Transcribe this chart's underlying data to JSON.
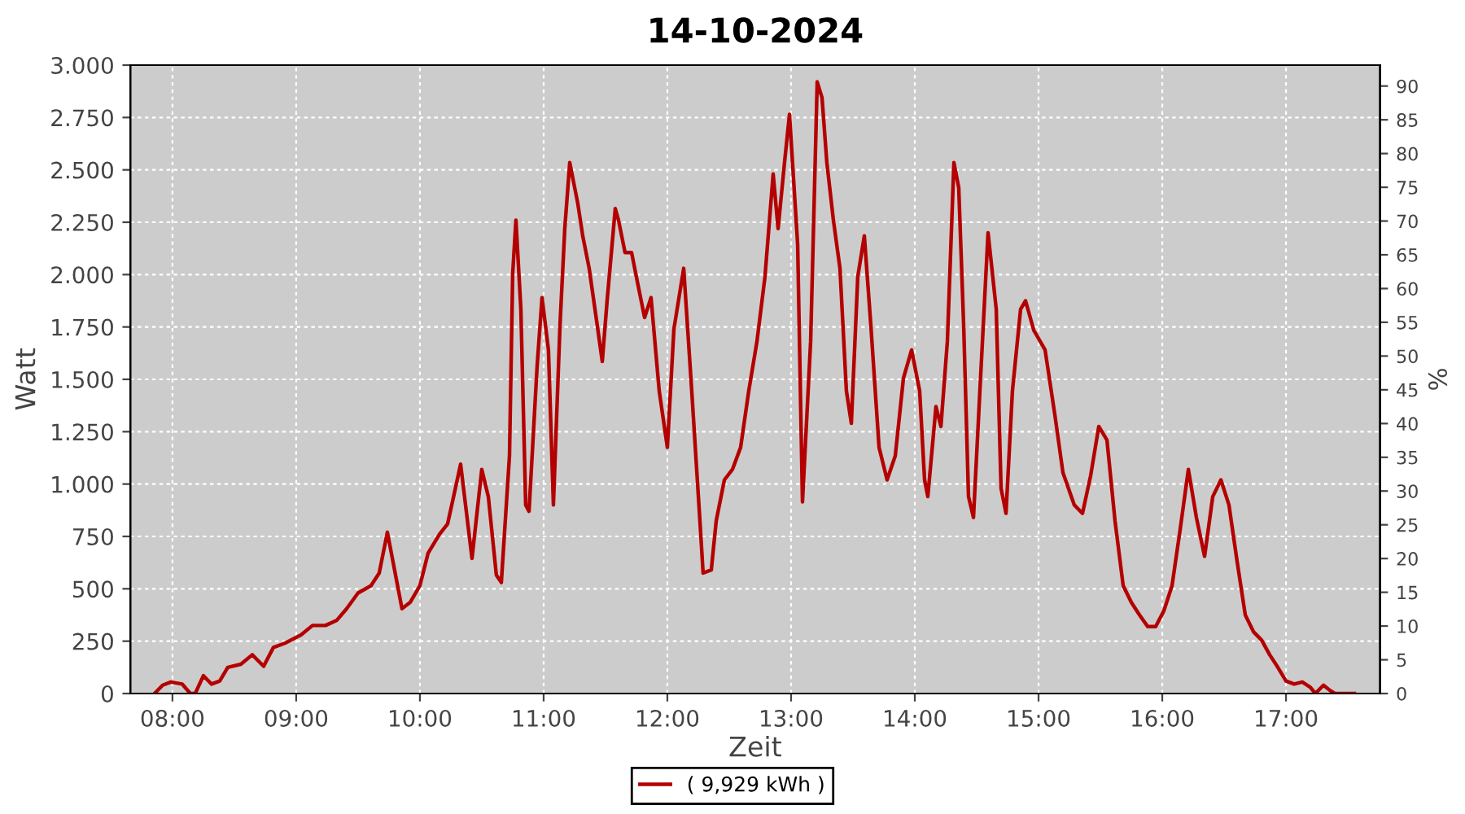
{
  "chart_data": {
    "type": "line",
    "title": "14-10-2024",
    "xlabel": "Zeit",
    "ylabel": "Watt",
    "y2label": "%",
    "xlim": [
      7.66,
      17.76
    ],
    "xticks": [
      {
        "value": 8,
        "label": "08:00"
      },
      {
        "value": 9,
        "label": "09:00"
      },
      {
        "value": 10,
        "label": "10:00"
      },
      {
        "value": 11,
        "label": "11:00"
      },
      {
        "value": 12,
        "label": "12:00"
      },
      {
        "value": 13,
        "label": "13:00"
      },
      {
        "value": 14,
        "label": "14:00"
      },
      {
        "value": 15,
        "label": "15:00"
      },
      {
        "value": 16,
        "label": "16:00"
      },
      {
        "value": 17,
        "label": "17:00"
      }
    ],
    "ylim": [
      0,
      3000
    ],
    "yticks": [
      0,
      250,
      500,
      750,
      {
        "value": 1000,
        "label": "1.000"
      },
      {
        "value": 1250,
        "label": "1.250"
      },
      {
        "value": 1500,
        "label": "1.500"
      },
      {
        "value": 1750,
        "label": "1.750"
      },
      {
        "value": 2000,
        "label": "2.000"
      },
      {
        "value": 2250,
        "label": "2.250"
      },
      {
        "value": 2500,
        "label": "2.500"
      },
      {
        "value": 2750,
        "label": "2.750"
      },
      {
        "value": 3000,
        "label": "3.000"
      }
    ],
    "y2lim": [
      0,
      93.1
    ],
    "y2ticks": [
      0,
      5,
      10,
      15,
      20,
      25,
      30,
      35,
      40,
      45,
      50,
      55,
      60,
      65,
      70,
      75,
      80,
      85,
      90
    ],
    "grid": true,
    "legend": "bottom",
    "marker": "none",
    "line_style": "solid",
    "series": [
      {
        "name": "( 9,929 kWh )",
        "color": "#b40000",
        "x": [
          7.855,
          7.921,
          7.987,
          8.079,
          8.145,
          8.184,
          8.25,
          8.316,
          8.382,
          8.447,
          8.553,
          8.645,
          8.737,
          8.816,
          8.908,
          9.039,
          9.132,
          9.237,
          9.329,
          9.408,
          9.5,
          9.605,
          9.671,
          9.737,
          9.855,
          9.921,
          10.0,
          10.066,
          10.158,
          10.224,
          10.263,
          10.329,
          10.421,
          10.5,
          10.553,
          10.618,
          10.658,
          10.724,
          10.75,
          10.776,
          10.816,
          10.855,
          10.882,
          10.947,
          10.987,
          11.039,
          11.079,
          11.132,
          11.171,
          11.211,
          11.276,
          11.316,
          11.368,
          11.434,
          11.474,
          11.513,
          11.579,
          11.605,
          11.658,
          11.711,
          11.763,
          11.816,
          11.868,
          11.934,
          12.0,
          12.053,
          12.132,
          12.197,
          12.263,
          12.289,
          12.355,
          12.395,
          12.461,
          12.526,
          12.592,
          12.658,
          12.724,
          12.789,
          12.855,
          12.895,
          12.947,
          12.987,
          13.053,
          13.092,
          13.158,
          13.211,
          13.25,
          13.289,
          13.342,
          13.395,
          13.447,
          13.487,
          13.539,
          13.592,
          13.645,
          13.711,
          13.776,
          13.842,
          13.908,
          13.974,
          14.039,
          14.079,
          14.105,
          14.171,
          14.211,
          14.263,
          14.316,
          14.355,
          14.395,
          14.434,
          14.474,
          14.526,
          14.592,
          14.658,
          14.697,
          14.737,
          14.789,
          14.855,
          14.895,
          14.961,
          15.053,
          15.132,
          15.197,
          15.289,
          15.355,
          15.421,
          15.487,
          15.553,
          15.618,
          15.684,
          15.75,
          15.816,
          15.882,
          15.947,
          16.013,
          16.079,
          16.145,
          16.211,
          16.276,
          16.342,
          16.408,
          16.474,
          16.539,
          16.605,
          16.671,
          16.737,
          16.803,
          16.868,
          16.934,
          17.0,
          17.066,
          17.132,
          17.197,
          17.237,
          17.303,
          17.355,
          17.395,
          17.553
        ],
        "values": [
          0,
          40,
          55,
          45,
          0,
          0,
          85,
          45,
          60,
          125,
          140,
          185,
          130,
          220,
          240,
          280,
          325,
          325,
          350,
          405,
          480,
          515,
          575,
          770,
          405,
          435,
          515,
          670,
          760,
          810,
          915,
          1095,
          645,
          1070,
          940,
          565,
          530,
          1135,
          2005,
          2260,
          1835,
          900,
          870,
          1560,
          1890,
          1640,
          900,
          1755,
          2220,
          2535,
          2340,
          2185,
          2030,
          1755,
          1585,
          1875,
          2315,
          2260,
          2105,
          2105,
          1950,
          1795,
          1890,
          1445,
          1175,
          1740,
          2030,
          1445,
          825,
          575,
          590,
          825,
          1020,
          1070,
          1175,
          1445,
          1680,
          1990,
          2480,
          2220,
          2535,
          2765,
          2145,
          915,
          1680,
          2920,
          2845,
          2535,
          2260,
          2030,
          1445,
          1290,
          1990,
          2185,
          1755,
          1175,
          1020,
          1135,
          1505,
          1640,
          1445,
          1020,
          940,
          1370,
          1275,
          1680,
          2535,
          2415,
          1755,
          940,
          840,
          1445,
          2200,
          1835,
          980,
          860,
          1445,
          1835,
          1875,
          1735,
          1640,
          1330,
          1055,
          900,
          860,
          1040,
          1275,
          1210,
          825,
          515,
          435,
          375,
          320,
          320,
          395,
          515,
          785,
          1070,
          840,
          655,
          940,
          1020,
          900,
          630,
          375,
          295,
          255,
          185,
          125,
          60,
          45,
          55,
          30,
          0,
          40,
          15,
          0,
          0
        ]
      }
    ]
  }
}
